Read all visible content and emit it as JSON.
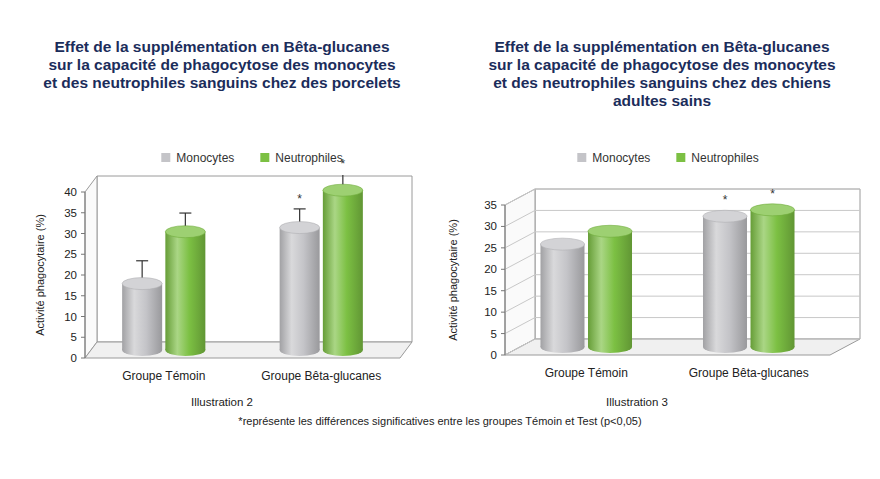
{
  "chart_data": [
    {
      "type": "bar",
      "title": "Effet de la supplémentation en Bêta-glucanes\nsur la capacité de phagocytose des monocytes\net des neutrophiles sanguins chez des porcelets",
      "y_label": "Activité phagocytaire (%)",
      "caption": "Illustration 2",
      "categories": [
        "Groupe Témoin",
        "Groupe Bêta-glucanes"
      ],
      "series": [
        {
          "name": "Monocytes",
          "color": "#c4c4c8",
          "values": [
            16,
            29.5
          ],
          "errors": [
            5.5,
            4.5
          ],
          "annotations": [
            null,
            "*"
          ]
        },
        {
          "name": "Neutrophiles",
          "color": "#7cc043",
          "values": [
            28.5,
            38.5
          ],
          "errors": [
            4.5,
            4
          ],
          "annotations": [
            null,
            "*"
          ]
        }
      ],
      "ylim": [
        0,
        40
      ],
      "yticks": [
        0,
        5,
        10,
        15,
        20,
        25,
        30,
        35,
        40
      ],
      "grid": false,
      "legend": "top"
    },
    {
      "type": "bar",
      "title": "Effet de la supplémentation en Bêta-glucanes\nsur la capacité de phagocytose des monocytes\net des neutrophiles sanguins chez des chiens\nadultes sains",
      "y_label": "Activité phagocytaire (%)",
      "caption": "Illustration 3",
      "categories": [
        "Groupe Témoin",
        "Groupe Bêta-glucanes"
      ],
      "series": [
        {
          "name": "Monocytes",
          "color": "#c4c4c8",
          "values": [
            24,
            30.5
          ],
          "annotations": [
            null,
            "*"
          ]
        },
        {
          "name": "Neutrophiles",
          "color": "#7cc043",
          "values": [
            27,
            32
          ],
          "annotations": [
            null,
            "*"
          ]
        }
      ],
      "ylim": [
        0,
        35
      ],
      "yticks": [
        0,
        5,
        10,
        15,
        20,
        25,
        30,
        35
      ],
      "grid": true,
      "legend": "top"
    }
  ],
  "footnote": "*représente les différences significatives entre les groupes Témoin et Test (p<0,05)"
}
